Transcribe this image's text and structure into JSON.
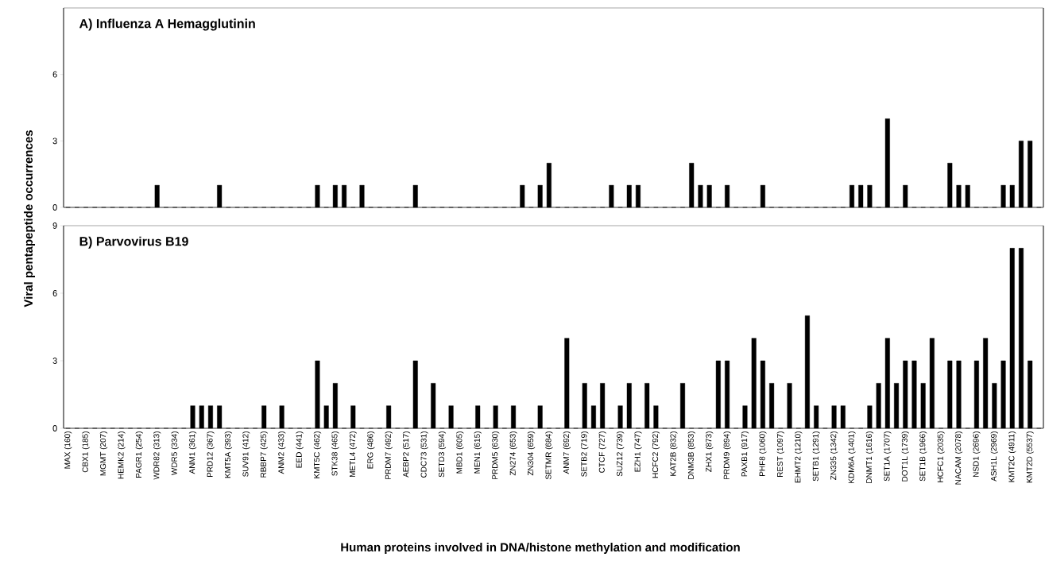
{
  "chart_data": [
    {
      "type": "bar",
      "title": "A) Influenza A Hemagglutinin",
      "ylabel": "Viral pentapeptide occurrences",
      "categories": [
        null,
        null,
        null,
        null,
        null,
        null,
        null,
        null,
        null,
        null,
        null,
        null,
        null,
        null,
        null,
        null,
        null,
        null,
        null,
        null,
        null,
        null,
        null,
        null,
        null,
        null,
        null,
        null,
        null,
        null,
        null,
        null,
        null,
        null,
        null,
        null,
        null,
        null,
        null,
        null,
        null,
        null,
        null,
        null,
        null,
        null,
        null,
        null,
        null,
        null,
        null,
        null,
        null,
        null,
        null,
        null,
        null,
        null,
        null,
        null,
        null,
        null,
        null,
        null,
        null,
        null,
        null,
        null,
        null,
        null,
        null,
        null,
        null,
        null,
        null,
        null,
        null,
        null,
        null,
        null,
        null,
        null,
        null,
        null,
        null,
        null,
        null,
        null,
        null,
        null,
        null,
        null,
        null,
        null,
        null,
        null,
        null,
        null,
        null,
        null,
        null,
        null,
        null,
        null,
        null,
        null,
        null,
        null,
        null,
        null
      ],
      "values": [
        0,
        0,
        0,
        0,
        0,
        0,
        0,
        0,
        0,
        0,
        1,
        0,
        0,
        0,
        0,
        0,
        0,
        1,
        0,
        0,
        0,
        0,
        0,
        0,
        0,
        0,
        0,
        0,
        1,
        0,
        1,
        1,
        0,
        1,
        0,
        0,
        0,
        0,
        0,
        1,
        0,
        0,
        0,
        0,
        0,
        0,
        0,
        0,
        0,
        0,
        0,
        1,
        0,
        1,
        2,
        0,
        0,
        0,
        0,
        0,
        0,
        1,
        0,
        1,
        1,
        0,
        0,
        0,
        0,
        0,
        2,
        1,
        1,
        0,
        1,
        0,
        0,
        0,
        1,
        0,
        0,
        0,
        0,
        0,
        0,
        0,
        0,
        0,
        1,
        1,
        1,
        0,
        4,
        0,
        1,
        0,
        0,
        0,
        0,
        2,
        1,
        1,
        0,
        0,
        0,
        1,
        1,
        3,
        3,
        0
      ],
      "color": "#000000",
      "ylim": [
        0,
        9
      ],
      "yticks": [
        0,
        3,
        6
      ]
    },
    {
      "type": "bar",
      "title": "B) Parvovirus B19",
      "xlabel": "Human proteins involved in DNA/histone methylation and modification",
      "categories": [
        "MAX (160)",
        null,
        "CBX1 (185)",
        null,
        "MGMT (207)",
        null,
        "HEMK2 (214)",
        null,
        "PAGR1 (254)",
        null,
        "WDR82 (313)",
        null,
        "WDR5 (334)",
        null,
        "ANM1 (361)",
        null,
        "PRD12 (367)",
        null,
        "KMT5A (393)",
        null,
        "SUV91 (412)",
        null,
        "RBBP7 (425)",
        null,
        "ANM2 (433)",
        null,
        "EED (441)",
        null,
        "KMT5C (462)",
        null,
        "STK38 (465)",
        null,
        "METL4 (472)",
        null,
        "ERG (486)",
        null,
        "PRDM7 (492)",
        null,
        "AEBP2 (517)",
        null,
        "CDC73 (531)",
        null,
        "SETD3 (594)",
        null,
        "MBD1 (605)",
        null,
        "MEN1 (615)",
        null,
        "PRDM5 (630)",
        null,
        "ZN274 (653)",
        null,
        "ZN304 (659)",
        null,
        "SETMR (684)",
        null,
        "ANM7 (692)",
        null,
        "SETB2 (719)",
        null,
        "CTCF (727)",
        null,
        "SUZ12 (739)",
        null,
        "EZH1 (747)",
        null,
        "HCFC2 (792)",
        null,
        "KAT2B (832)",
        null,
        "DNM3B (853)",
        null,
        "ZHX1 (873)",
        null,
        "PRDM9 (894)",
        null,
        "PAXB1 (917)",
        null,
        "PHF8 (1060)",
        null,
        "REST (1097)",
        null,
        "EHMT2 (1210)",
        null,
        "SETB1 (1291)",
        null,
        "ZN335 (1342)",
        null,
        "KDM6A (1401)",
        null,
        "DNMT1 (1616)",
        null,
        "SET1A (1707)",
        null,
        "DOT1L (1739)",
        null,
        "SET1B (1966)",
        null,
        "HCFC1 (2035)",
        null,
        "NACAM (2078)",
        null,
        "NSD1 (2696)",
        null,
        "ASH1L (2969)",
        null,
        "KMT2C (4911)",
        null,
        "KMT2D (5537)",
        null
      ],
      "values": [
        0,
        0,
        0,
        0,
        0,
        0,
        0,
        0,
        0,
        0,
        0,
        0,
        0,
        0,
        1,
        1,
        1,
        1,
        0,
        0,
        0,
        0,
        1,
        0,
        1,
        0,
        0,
        0,
        3,
        1,
        2,
        0,
        1,
        0,
        0,
        0,
        1,
        0,
        0,
        3,
        0,
        2,
        0,
        1,
        0,
        0,
        1,
        0,
        1,
        0,
        1,
        0,
        0,
        1,
        0,
        0,
        4,
        0,
        2,
        1,
        2,
        0,
        1,
        2,
        0,
        2,
        1,
        0,
        0,
        2,
        0,
        0,
        0,
        3,
        3,
        0,
        1,
        4,
        3,
        2,
        0,
        2,
        0,
        5,
        1,
        0,
        1,
        1,
        0,
        0,
        1,
        2,
        4,
        2,
        3,
        3,
        2,
        4,
        0,
        3,
        3,
        0,
        3,
        4,
        2,
        3,
        8,
        8,
        3,
        0
      ],
      "color": "#000000",
      "ylim": [
        0,
        9
      ],
      "yticks": [
        0,
        3,
        6,
        9
      ]
    }
  ]
}
